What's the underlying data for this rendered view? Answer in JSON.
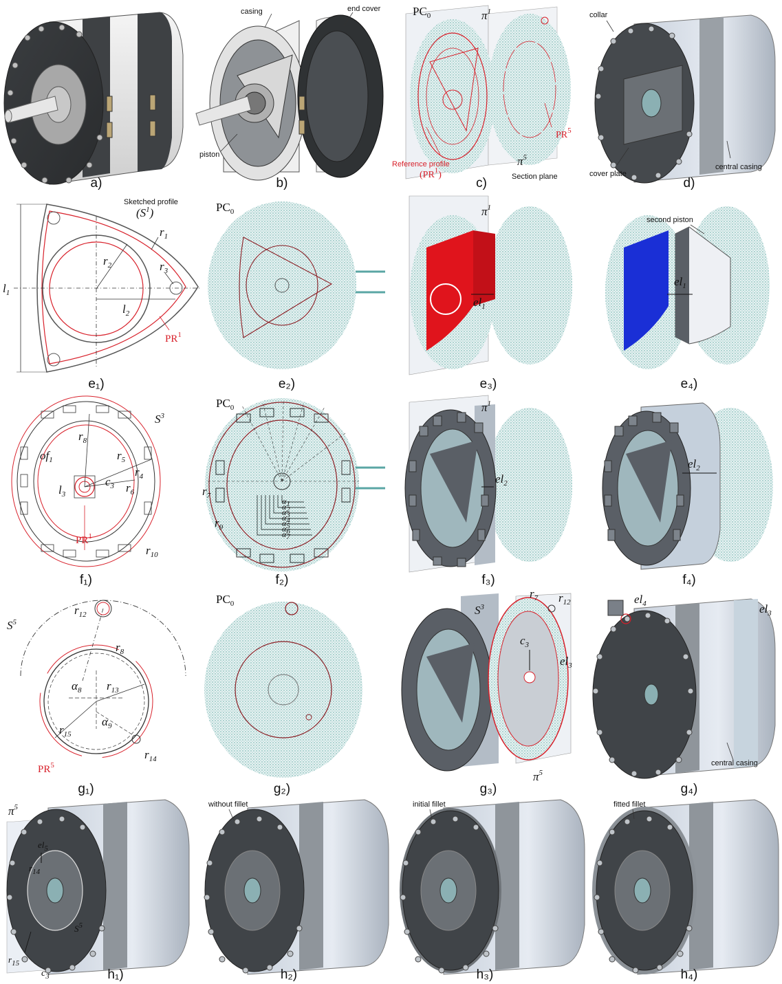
{
  "captions": {
    "a": "a)",
    "b": "b)",
    "c": "c)",
    "d": "d)",
    "e1": "e₁)",
    "e2": "e₂)",
    "e3": "e₃)",
    "e4": "e₄)",
    "f1": "f₁)",
    "f2": "f₂)",
    "f3": "f₃)",
    "f4": "f₄)",
    "g1": "g₁)",
    "g2": "g₂)",
    "g3": "g₃)",
    "g4": "g₄)",
    "h1": "h₁)",
    "h2": "h₂)",
    "h3": "h₃)",
    "h4": "h₄)"
  },
  "labels": {
    "casing": "casing",
    "end_cover": "end cover",
    "piston": "piston",
    "pc0": "PC",
    "pc0_sub": "0",
    "pi": "π",
    "sup1": "1",
    "sup5": "5",
    "pr": "PR",
    "ref_profile": "Reference profile",
    "section_plane": "Section plane",
    "collar": "collar",
    "cover_plate": "cover plate",
    "central_casing": "central casing",
    "sketched_profile": "Sketched profile",
    "s": "S",
    "sup3": "3",
    "second_piston": "second piston",
    "el": "el",
    "without_fillet": "without fillet",
    "initial_fillet": "initial fillet",
    "fitted_fillet": "fitted fillet",
    "r": "r",
    "l": "l",
    "c": "c",
    "of": "of",
    "alpha": "α"
  },
  "subscripts": {
    "e1": [
      "1",
      "2",
      "3",
      "1",
      "2"
    ],
    "f1": [
      "8",
      "5",
      "4",
      "6",
      "3",
      "3",
      "1",
      "10"
    ],
    "f2": [
      "7",
      "9",
      "1",
      "2",
      "3",
      "4",
      "5",
      "6",
      "7"
    ],
    "g1": [
      "12",
      "8",
      "8",
      "13",
      "15",
      "9",
      "14"
    ],
    "g3": [
      "7",
      "12",
      "3",
      "3"
    ],
    "g4": [
      "4",
      "3"
    ],
    "h1": [
      "5",
      "14",
      "15",
      "3"
    ]
  },
  "colors": {
    "mesh": "#5aa6a4",
    "red": "#d8202a",
    "dark": "#454a4f",
    "steel": "#b9c2cc",
    "blue": "#1a2fd6"
  }
}
